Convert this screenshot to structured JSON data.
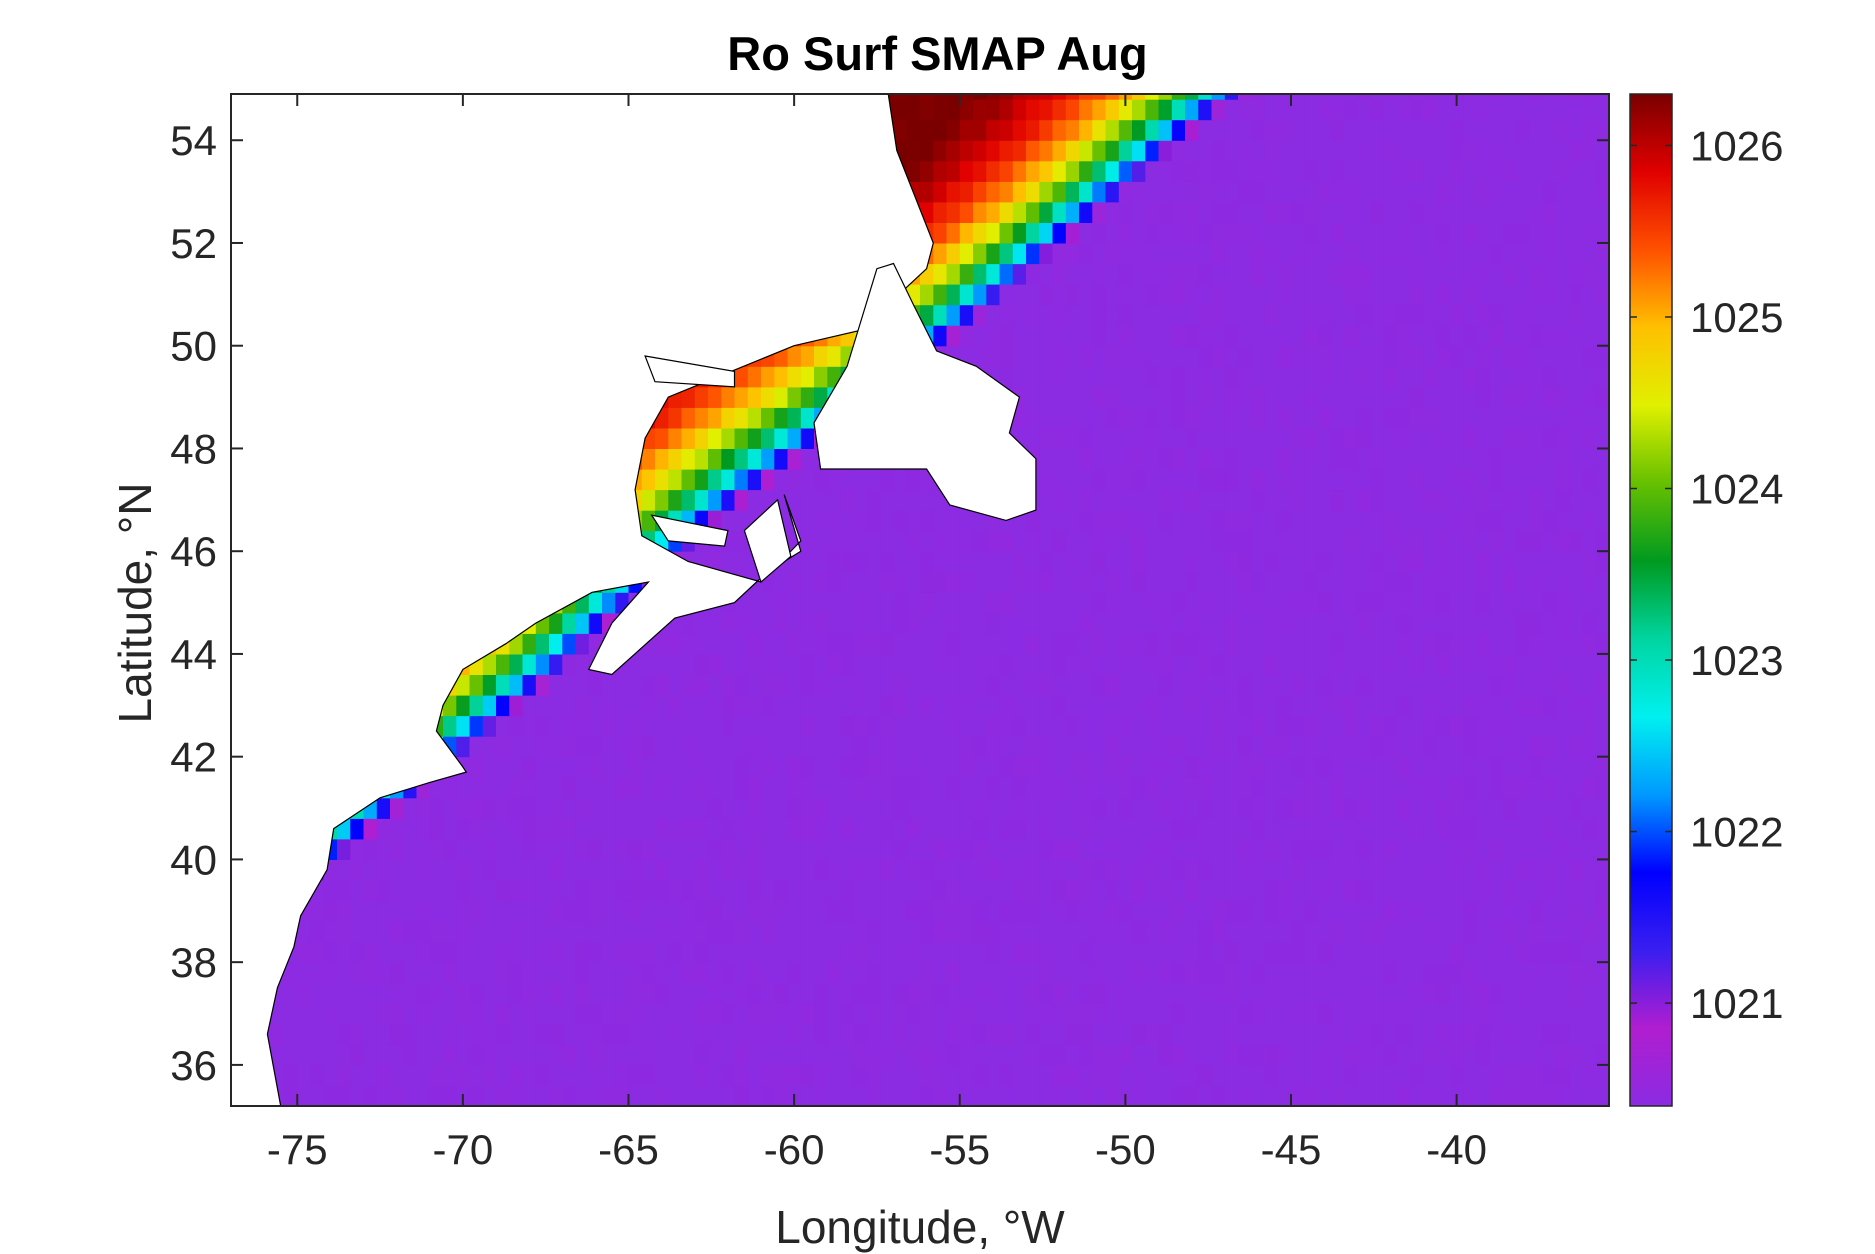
{
  "chart_data": {
    "type": "heatmap",
    "title": "Ro Surf SMAP Aug",
    "xlabel": "Longitude, °W",
    "ylabel": "Latitude, °N",
    "xlim": [
      -77,
      -35.4
    ],
    "ylim": [
      35.2,
      54.9
    ],
    "xticks": [
      -75,
      -70,
      -65,
      -60,
      -55,
      -50,
      -45,
      -40
    ],
    "xtick_labels": [
      "-75",
      "-70",
      "-65",
      "-60",
      "-55",
      "-50",
      "-45",
      "-40"
    ],
    "yticks": [
      36,
      38,
      40,
      42,
      44,
      46,
      48,
      50,
      52,
      54
    ],
    "ytick_labels": [
      "36",
      "38",
      "40",
      "42",
      "44",
      "46",
      "48",
      "50",
      "52",
      "54"
    ],
    "colorbar": {
      "range": [
        1020.4,
        1026.3
      ],
      "ticks": [
        1021,
        1022,
        1023,
        1024,
        1025,
        1026
      ],
      "tick_labels": [
        "1021",
        "1022",
        "1023",
        "1024",
        "1025",
        "1026"
      ],
      "colormap": [
        "#8b2be2",
        "#b01ed0",
        "#3a1ef0",
        "#0000ff",
        "#0099ff",
        "#00f0f0",
        "#00d5a0",
        "#009a20",
        "#66c000",
        "#e0f000",
        "#ffc000",
        "#ff5000",
        "#e00000",
        "#7a0000"
      ]
    },
    "land_color": "#ffffff",
    "coastline_color": "#000000",
    "grid": false
  }
}
